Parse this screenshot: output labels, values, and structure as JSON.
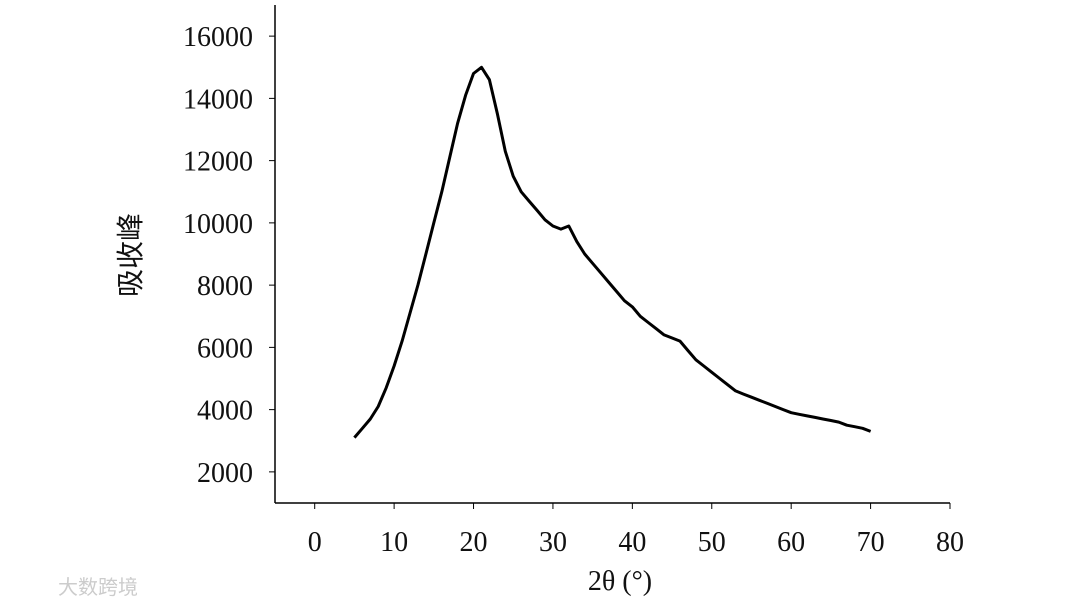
{
  "chart_data": {
    "type": "line",
    "xlabel": "2θ (°)",
    "ylabel": "吸收峰",
    "watermark": "大数跨境",
    "x": [
      5,
      6,
      7,
      8,
      9,
      10,
      11,
      12,
      13,
      14,
      15,
      16,
      17,
      18,
      19,
      20,
      21,
      22,
      23,
      24,
      25,
      26,
      27,
      28,
      29,
      30,
      31,
      32,
      33,
      34,
      35,
      36,
      37,
      38,
      39,
      40,
      41,
      42,
      43,
      44,
      45,
      46,
      47,
      48,
      49,
      50,
      51,
      52,
      53,
      54,
      55,
      56,
      57,
      58,
      59,
      60,
      61,
      62,
      63,
      64,
      65,
      66,
      67,
      68,
      69,
      70
    ],
    "series": [
      {
        "color": "#000000",
        "values": [
          3100,
          3400,
          3700,
          4100,
          4700,
          5400,
          6200,
          7100,
          8000,
          9000,
          10000,
          11000,
          12100,
          13200,
          14100,
          14800,
          15000,
          14600,
          13500,
          12300,
          11500,
          11000,
          10700,
          10400,
          10100,
          9900,
          9800,
          9900,
          9400,
          9000,
          8700,
          8400,
          8100,
          7800,
          7500,
          7300,
          7000,
          6800,
          6600,
          6400,
          6300,
          6200,
          5900,
          5600,
          5400,
          5200,
          5000,
          4800,
          4600,
          4500,
          4400,
          4300,
          4200,
          4100,
          4000,
          3900,
          3850,
          3800,
          3750,
          3700,
          3650,
          3600,
          3500,
          3450,
          3400,
          3300
        ]
      }
    ],
    "xlim": [
      -5,
      80
    ],
    "xticks": [
      0,
      10,
      20,
      30,
      40,
      50,
      60,
      70,
      80
    ],
    "ylim": [
      1000,
      17000
    ],
    "yticks": [
      2000,
      4000,
      6000,
      8000,
      10000,
      12000,
      14000,
      16000
    ]
  }
}
